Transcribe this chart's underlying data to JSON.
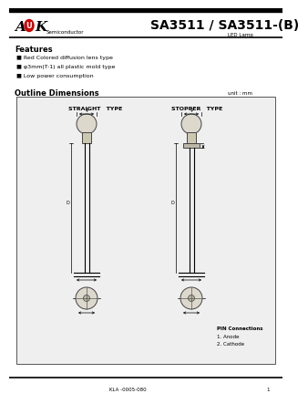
{
  "title": "SA3511 / SA3511-(B)",
  "subtitle": "LED Lamp",
  "features_title": "Features",
  "features": [
    "■ Red Colored diffusion lens type",
    "■ φ3mm(T-1) all plastic mold type",
    "■ Low power consumption"
  ],
  "outline_title": "Outline Dimensions",
  "unit_label": "unit : mm",
  "straight_label": "STRAIGHT   TYPE",
  "stopper_label": "STOPPER   TYPE",
  "pin_connections": "PIN Connections",
  "pin1": "1. Anode",
  "pin2": "2. Cathode",
  "footer": "KLA -0005-080",
  "page": "1",
  "bg_color": "#ffffff",
  "diagram_bg": "#efefef"
}
